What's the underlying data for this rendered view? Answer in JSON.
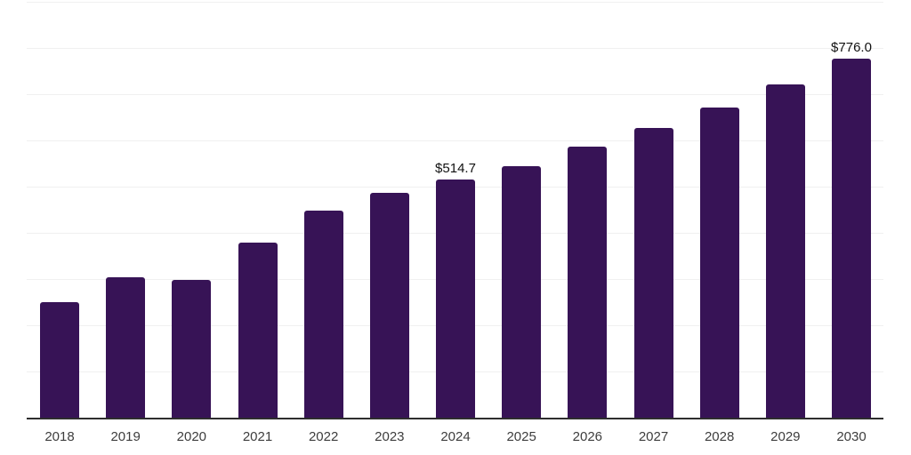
{
  "chart_data": {
    "type": "bar",
    "title": "",
    "xlabel": "",
    "ylabel": "",
    "categories": [
      "2018",
      "2019",
      "2020",
      "2021",
      "2022",
      "2023",
      "2024",
      "2025",
      "2026",
      "2027",
      "2028",
      "2029",
      "2030"
    ],
    "values": [
      250,
      304,
      299,
      378,
      448,
      486,
      514.7,
      545,
      586,
      626,
      671,
      721,
      776.0
    ],
    "bar_labels": [
      "",
      "",
      "",
      "",
      "",
      "",
      "$514.7",
      "",
      "",
      "",
      "",
      "",
      "$776.0"
    ],
    "ylim": [
      0,
      900
    ],
    "grid_step": 100,
    "grid": "horizontal",
    "legend_position": "none",
    "colors": {
      "bar": "#371356",
      "gridline": "#f0f0f0",
      "axis_line": "#2e2e2e",
      "tick_label": "#3d3d3d",
      "value_label": "#111111",
      "background": "#ffffff"
    }
  }
}
